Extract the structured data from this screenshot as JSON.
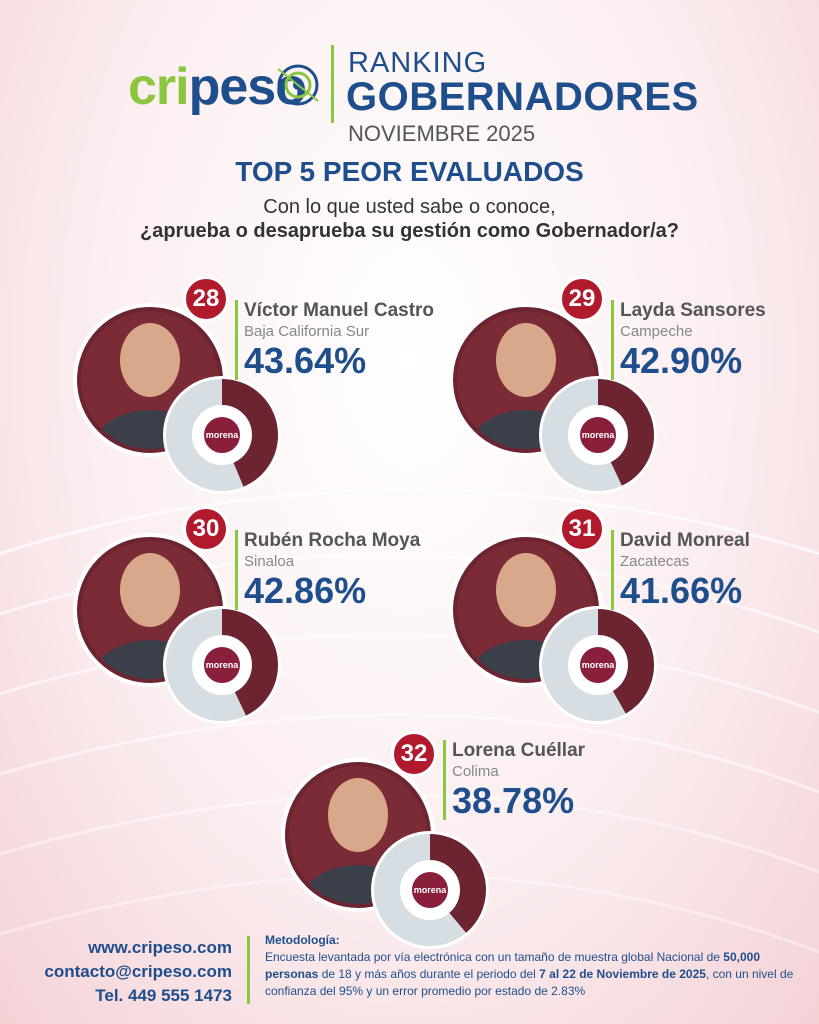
{
  "brand": {
    "logo_part1": "cri",
    "logo_part2": "peso",
    "title_line1": "RANKING",
    "title_line2": "GOBERNADORES",
    "title_line3": "NOVIEMBRE 2025"
  },
  "subtitle": "TOP 5 PEOR EVALUADOS",
  "question": {
    "line1": "Con lo que usted sabe o conoce,",
    "line2": "¿aprueba o desaprueba su gestión como Gobernador/a?"
  },
  "governors": [
    {
      "rank": "28",
      "name": "Víctor Manuel Castro",
      "state": "Baja California Sur",
      "approval_label": "43.64%",
      "approval": 43.64,
      "party": "morena"
    },
    {
      "rank": "29",
      "name": "Layda Sansores",
      "state": "Campeche",
      "approval_label": "42.90%",
      "approval": 42.9,
      "party": "morena"
    },
    {
      "rank": "30",
      "name": "Rubén Rocha Moya",
      "state": "Sinaloa",
      "approval_label": "42.86%",
      "approval": 42.86,
      "party": "morena"
    },
    {
      "rank": "31",
      "name": "David Monreal",
      "state": "Zacatecas",
      "approval_label": "41.66%",
      "approval": 41.66,
      "party": "morena"
    },
    {
      "rank": "32",
      "name": "Lorena Cuéllar",
      "state": "Colima",
      "approval_label": "38.78%",
      "approval": 38.78,
      "party": "morena"
    }
  ],
  "colors": {
    "approve": "#6b2430",
    "disapprove": "#d6dde3",
    "accent_green": "#8cc63f",
    "brand_blue": "#1f4e8c",
    "badge_red": "#b1192c"
  },
  "footer": {
    "website": "www.cripeso.com",
    "email": "contacto@cripeso.com",
    "phone": "Tel. 449 555 1473",
    "method_title": "Metodología:",
    "method_p1": "Encuesta levantada por vía electrónica con un tamaño de muestra global Nacional de ",
    "method_b1": "50,000 personas",
    "method_p2": " de 18 y más años durante el periodo del ",
    "method_b2": "7 al 22 de Noviembre de 2025",
    "method_p3": ", con un nivel de confianza del 95% y un error promedio por estado de 2.83%"
  }
}
